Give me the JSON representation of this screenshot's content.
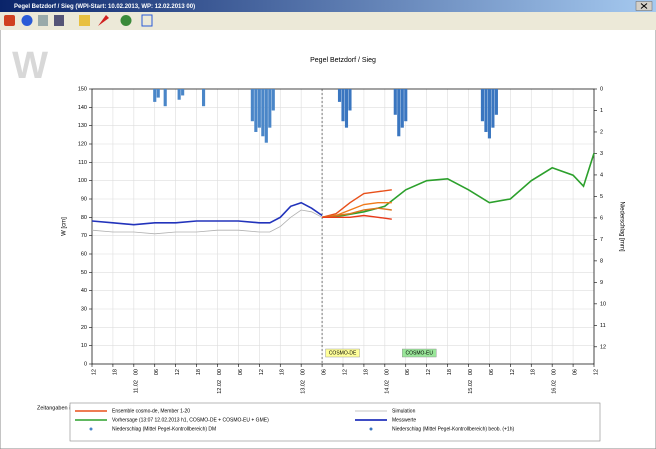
{
  "window": {
    "title": "Pegel Betzdorf / Sieg (WPI-Start: 10.02.2013, WP: 12.02.2013 00)",
    "logo": "W"
  },
  "chart_data": {
    "type": "line",
    "title": "Pegel Betzdorf / Sieg",
    "ylabel": "W [cm]",
    "y2label": "Niederschlag [mm]",
    "xnote": "Zeitangaben in MEZ",
    "xlim": [
      0,
      144
    ],
    "xticks": [
      {
        "value": 0,
        "label": "12"
      },
      {
        "value": 6,
        "label": "18"
      },
      {
        "value": 12,
        "label": "00"
      },
      {
        "value": 18,
        "label": "06"
      },
      {
        "value": 24,
        "label": "12"
      },
      {
        "value": 30,
        "label": "18"
      },
      {
        "value": 36,
        "label": "00"
      },
      {
        "value": 42,
        "label": "06"
      },
      {
        "value": 48,
        "label": "12"
      },
      {
        "value": 54,
        "label": "18"
      },
      {
        "value": 60,
        "label": "00"
      },
      {
        "value": 66,
        "label": "06"
      },
      {
        "value": 72,
        "label": "12"
      },
      {
        "value": 78,
        "label": "18"
      },
      {
        "value": 84,
        "label": "00"
      },
      {
        "value": 90,
        "label": "06"
      },
      {
        "value": 96,
        "label": "12"
      },
      {
        "value": 102,
        "label": "18"
      },
      {
        "value": 108,
        "label": "00"
      },
      {
        "value": 114,
        "label": "06"
      },
      {
        "value": 120,
        "label": "12"
      },
      {
        "value": 126,
        "label": "18"
      },
      {
        "value": 132,
        "label": "00"
      },
      {
        "value": 138,
        "label": "06"
      },
      {
        "value": 144,
        "label": "12"
      }
    ],
    "xdates": [
      {
        "value": 12,
        "label": "11.02"
      },
      {
        "value": 36,
        "label": "12.02"
      },
      {
        "value": 60,
        "label": "13.02"
      },
      {
        "value": 84,
        "label": "14.02"
      },
      {
        "value": 108,
        "label": "15.02"
      },
      {
        "value": 132,
        "label": "16.02"
      }
    ],
    "ylim": [
      0,
      150
    ],
    "yticks": [
      0,
      10,
      20,
      30,
      40,
      50,
      60,
      70,
      80,
      90,
      100,
      110,
      120,
      130,
      140,
      150
    ],
    "y2lim": [
      0,
      12.8
    ],
    "y2_reversed": true,
    "y2ticks": [
      0,
      1,
      2,
      3,
      4,
      5,
      6,
      7,
      8,
      9,
      10,
      11,
      12
    ],
    "grid": true,
    "now_x": 66,
    "annotations": [
      {
        "text": "COSMO-DE",
        "x": 67,
        "color": "#ffff99"
      },
      {
        "text": "COSMO-EU",
        "x": 89,
        "color": "#99e699"
      }
    ],
    "series": [
      {
        "name": "Simulation",
        "color": "#b0b0b0",
        "x": [
          0,
          6,
          12,
          18,
          24,
          30,
          36,
          42,
          48,
          51,
          54,
          57,
          60,
          63,
          66
        ],
        "values": [
          73,
          72,
          72,
          71,
          72,
          72,
          73,
          73,
          72,
          72,
          75,
          80,
          84,
          83,
          80
        ]
      },
      {
        "name": "Messwerte",
        "color": "#2233bb",
        "x": [
          0,
          6,
          12,
          18,
          24,
          30,
          36,
          42,
          48,
          51,
          54,
          57,
          60,
          63,
          66
        ],
        "values": [
          78,
          77,
          76,
          77,
          77,
          78,
          78,
          78,
          77,
          77,
          80,
          86,
          88,
          85,
          81
        ]
      },
      {
        "name": "Vorhersage (13:07 12.02.2013 h1, COSMO-DE + COSMO-EU + GME)",
        "color": "#2ca02c",
        "x": [
          66,
          72,
          78,
          84,
          90,
          96,
          102,
          108,
          114,
          120,
          126,
          132,
          138,
          141,
          144
        ],
        "values": [
          80,
          81,
          83,
          86,
          95,
          100,
          101,
          95,
          88,
          90,
          100,
          107,
          103,
          97,
          115
        ]
      },
      {
        "name": "Ensemble cosmo-de, Member 1-20",
        "color": "#e8501a",
        "x": [
          66,
          70,
          74,
          78,
          82,
          86
        ],
        "member_colors": [
          "#e8501a",
          "#f07a1a",
          "#d9761e",
          "#e83a1a"
        ],
        "members": [
          [
            80,
            82,
            88,
            93,
            94,
            95
          ],
          [
            80,
            81,
            84,
            87,
            88,
            88
          ],
          [
            80,
            81,
            82,
            84,
            85,
            84
          ],
          [
            80,
            80,
            80,
            81,
            80,
            79
          ]
        ]
      }
    ],
    "bars": [
      {
        "name": "Niederschlag (Mittel Pegel-Kontrollbereich) DM",
        "color": "#4a86c8",
        "axis": "y2",
        "x": [
          18,
          19,
          21,
          25,
          26,
          32,
          46,
          47,
          48,
          49,
          50,
          51,
          52
        ],
        "values": [
          0.6,
          0.4,
          0.8,
          0.5,
          0.3,
          0.8,
          1.5,
          2.0,
          1.8,
          2.2,
          2.5,
          1.8,
          1.0
        ]
      },
      {
        "name": "Niederschlag (Mittel Pegel-Kontrollbereich) beob. (+1h)",
        "color": "#3a76c0",
        "axis": "y2",
        "x": [
          71,
          72,
          73,
          74,
          87,
          88,
          89,
          90,
          112,
          113,
          114,
          115,
          116
        ],
        "values": [
          0.6,
          1.5,
          1.8,
          1.0,
          1.2,
          2.2,
          1.8,
          1.5,
          1.5,
          2.0,
          2.3,
          1.8,
          1.2
        ]
      }
    ]
  }
}
